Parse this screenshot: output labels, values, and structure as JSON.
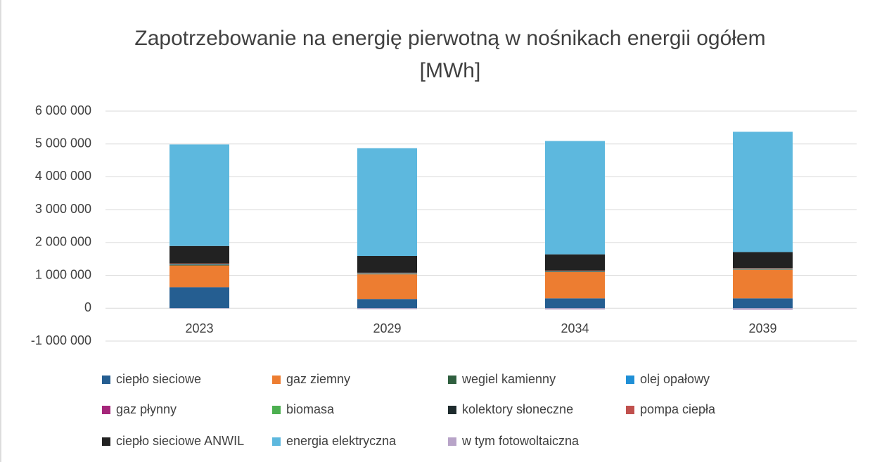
{
  "chart_data": {
    "type": "stacked_bar",
    "title": "Zapotrzebowanie na energię pierwotną w nośnikach energii ogółem [MWh]",
    "categories": [
      "2023",
      "2029",
      "2034",
      "2039"
    ],
    "ylim": [
      -1000000,
      6000000
    ],
    "yticks": [
      {
        "value": -1000000,
        "label": "-1 000 000"
      },
      0,
      {
        "value": 1000000,
        "label": "1 000 000"
      },
      {
        "value": 2000000,
        "label": "2 000 000"
      },
      {
        "value": 3000000,
        "label": "3 000 000"
      },
      {
        "value": 4000000,
        "label": "4 000 000"
      },
      {
        "value": 5000000,
        "label": "5 000 000"
      },
      {
        "value": 6000000,
        "label": "6 000 000"
      }
    ],
    "grid": true,
    "legend": "bottom",
    "series": [
      {
        "name": "ciepło sieciowe",
        "color": "#255e91",
        "values": [
          640000,
          280000,
          300000,
          300000
        ]
      },
      {
        "name": "gaz ziemny",
        "color": "#ed7d31",
        "values": [
          660000,
          750000,
          800000,
          870000
        ]
      },
      {
        "name": "wegiel kamienny",
        "color": "#2f5f3f",
        "values": [
          20000,
          10000,
          10000,
          10000
        ]
      },
      {
        "name": "olej opałowy",
        "color": "#1f8fd6",
        "values": [
          10000,
          5000,
          5000,
          5000
        ]
      },
      {
        "name": "gaz płynny",
        "color": "#a5267a",
        "values": [
          5000,
          5000,
          5000,
          5000
        ]
      },
      {
        "name": "biomasa",
        "color": "#4caf50",
        "values": [
          10000,
          10000,
          10000,
          10000
        ]
      },
      {
        "name": "kolektory słoneczne",
        "color": "#1e2b2d",
        "values": [
          10000,
          10000,
          10000,
          10000
        ]
      },
      {
        "name": "pompa ciepła",
        "color": "#c0504d",
        "values": [
          10000,
          10000,
          10000,
          10000
        ]
      },
      {
        "name": "ciepło sieciowe ANWIL",
        "color": "#222222",
        "values": [
          530000,
          510000,
          490000,
          490000
        ]
      },
      {
        "name": "energia elektryczna",
        "color": "#5db8de",
        "values": [
          3090000,
          3280000,
          3450000,
          3660000
        ]
      },
      {
        "name": "w tym fotowoltaiczna",
        "color": "#b8a4c8",
        "values": [
          -10000,
          -30000,
          -40000,
          -50000
        ]
      }
    ]
  }
}
